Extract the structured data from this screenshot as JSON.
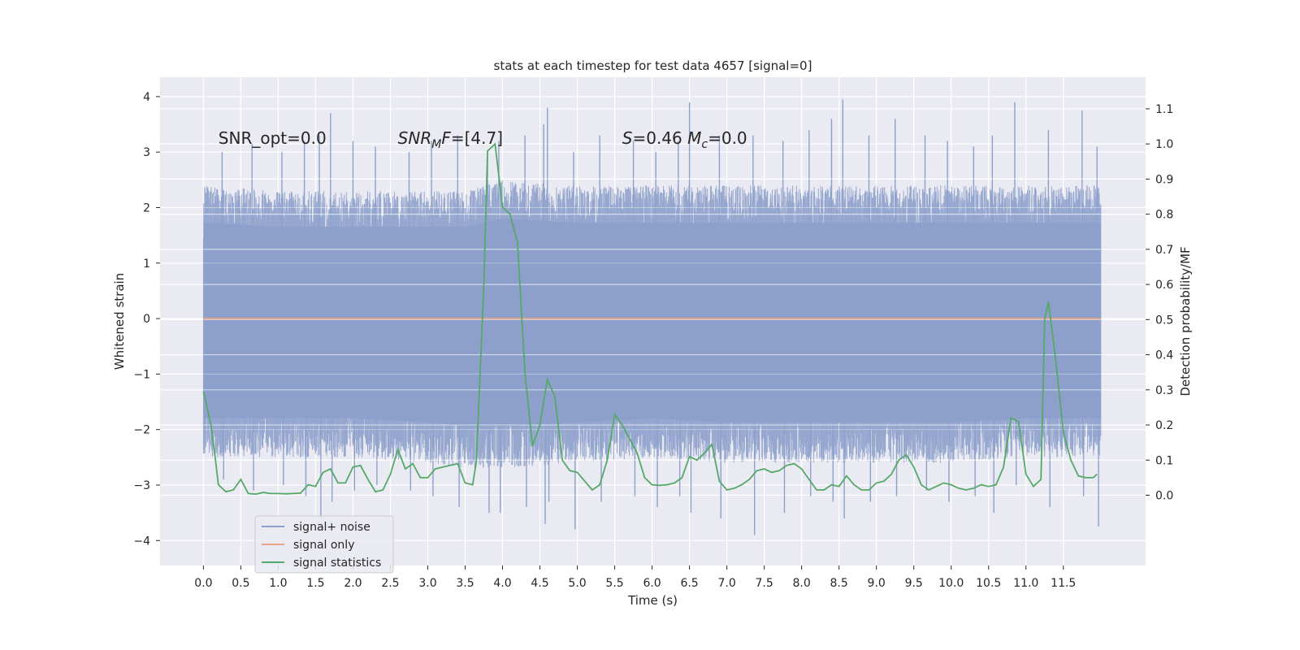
{
  "chart_data": {
    "type": "line",
    "title": "stats at each timestep for test data 4657 [signal=0]",
    "xlabel": "Time (s)",
    "ylabel": "Whitened strain",
    "y2label": "Detection probability/MF",
    "xlim": [
      -0.58,
      12.6
    ],
    "ylim": [
      -4.45,
      4.35
    ],
    "y2lim": [
      -0.2,
      1.19
    ],
    "grid": true,
    "legend_position": "lower-left",
    "x_ticks": [
      0.0,
      0.5,
      1.0,
      1.5,
      2.0,
      2.5,
      3.0,
      3.5,
      4.0,
      4.5,
      5.0,
      5.5,
      6.0,
      6.5,
      7.0,
      7.5,
      8.0,
      8.5,
      9.0,
      9.5,
      10.0,
      10.5,
      11.0,
      11.5
    ],
    "x_tick_labels": [
      "0.0",
      "0.5",
      "1.0",
      "1.5",
      "2.0",
      "2.5",
      "3.0",
      "3.5",
      "4.0",
      "4.5",
      "5.0",
      "5.5",
      "6.0",
      "6.5",
      "7.0",
      "7.5",
      "8.0",
      "8.5",
      "9.0",
      "9.5",
      "10.0",
      "10.5",
      "11.0",
      "11.5"
    ],
    "y_ticks": [
      -4,
      -3,
      -2,
      -1,
      0,
      1,
      2,
      3,
      4
    ],
    "y_tick_labels": [
      "−4",
      "−3",
      "−2",
      "−1",
      "0",
      "1",
      "2",
      "3",
      "4"
    ],
    "y2_ticks": [
      0.0,
      0.1,
      0.2,
      0.3,
      0.4,
      0.5,
      0.6,
      0.7,
      0.8,
      0.9,
      1.0,
      1.1
    ],
    "y2_tick_labels": [
      "0.0",
      "0.1",
      "0.2",
      "0.3",
      "0.4",
      "0.5",
      "0.6",
      "0.7",
      "0.8",
      "0.9",
      "1.0",
      "1.1"
    ],
    "annotations": [
      {
        "x": 0.2,
        "y": 3.15,
        "parts": [
          {
            "text": "SNR_opt=0.0"
          }
        ]
      },
      {
        "x": 2.6,
        "y": 3.15,
        "parts": [
          {
            "text": "SNR",
            "italic": true
          },
          {
            "text": "M",
            "italic": true,
            "sub": true
          },
          {
            "text": "F",
            "italic": true
          },
          {
            "text": "=[4.7]"
          }
        ]
      },
      {
        "x": 5.6,
        "y": 3.15,
        "parts": [
          {
            "text": "S",
            "italic": true
          },
          {
            "text": "=0.46   "
          },
          {
            "text": "M",
            "italic": true
          },
          {
            "text": "c",
            "italic": true,
            "sub": true
          },
          {
            "text": "=0.0"
          }
        ]
      }
    ],
    "series": [
      {
        "name": "signal+ noise",
        "color": "#8da0cb",
        "axis": "left",
        "style": "noise",
        "x_range": [
          0.0,
          12.0
        ],
        "band_envelope": {
          "x": [
            0.0,
            1.0,
            2.0,
            3.0,
            3.5,
            4.0,
            5.0,
            6.0,
            7.0,
            8.0,
            9.0,
            10.0,
            11.0,
            12.0
          ],
          "upper": [
            2.4,
            2.3,
            2.3,
            2.3,
            2.3,
            2.5,
            2.4,
            2.4,
            2.4,
            2.4,
            2.4,
            2.4,
            2.4,
            2.4
          ],
          "lower": [
            -2.5,
            -2.5,
            -2.5,
            -2.6,
            -2.7,
            -2.7,
            -2.6,
            -2.5,
            -2.6,
            -2.6,
            -2.6,
            -2.6,
            -2.5,
            -2.5
          ]
        },
        "peaks": {
          "x": [
            0.25,
            0.65,
            1.05,
            1.35,
            1.55,
            1.7,
            2.0,
            2.3,
            2.75,
            3.05,
            3.4,
            3.8,
            3.95,
            4.3,
            4.55,
            4.6,
            4.95,
            5.3,
            5.75,
            6.05,
            6.35,
            6.5,
            6.9,
            7.35,
            7.75,
            8.1,
            8.4,
            8.55,
            8.9,
            9.25,
            9.65,
            9.95,
            10.3,
            10.55,
            10.85,
            11.3,
            11.75,
            11.95
          ],
          "upper": [
            3.0,
            3.15,
            3.0,
            3.2,
            3.3,
            3.7,
            3.2,
            3.1,
            3.0,
            3.2,
            3.3,
            2.9,
            3.2,
            3.3,
            3.5,
            3.8,
            3.0,
            3.3,
            3.2,
            3.0,
            3.2,
            3.9,
            3.3,
            3.3,
            3.2,
            3.4,
            3.6,
            3.95,
            3.3,
            3.6,
            3.3,
            3.2,
            3.1,
            3.3,
            3.9,
            3.4,
            3.75,
            3.1
          ],
          "lower": [
            -2.9,
            -3.1,
            -3.0,
            -3.2,
            -3.6,
            -3.3,
            -3.1,
            -3.0,
            -3.1,
            -3.2,
            -3.4,
            -3.5,
            -3.5,
            -3.4,
            -3.7,
            -3.3,
            -3.8,
            -3.3,
            -3.2,
            -3.4,
            -3.2,
            -3.5,
            -3.6,
            -3.9,
            -3.5,
            -3.2,
            -3.3,
            -3.6,
            -3.3,
            -3.2,
            -3.1,
            -3.3,
            -3.2,
            -3.5,
            -3.0,
            -3.4,
            -3.2,
            -3.75
          ]
        }
      },
      {
        "name": "signal only",
        "color": "#e5a58a",
        "axis": "left",
        "style": "line",
        "x": [
          0.0,
          12.0
        ],
        "y": [
          0.0,
          0.0
        ]
      },
      {
        "name": "signal statistics",
        "color": "#55a868",
        "axis": "right",
        "style": "line",
        "x": [
          0.0,
          0.05,
          0.1,
          0.15,
          0.2,
          0.3,
          0.4,
          0.5,
          0.6,
          0.7,
          0.8,
          0.9,
          1.0,
          1.1,
          1.2,
          1.3,
          1.4,
          1.5,
          1.6,
          1.7,
          1.8,
          1.9,
          2.0,
          2.1,
          2.2,
          2.3,
          2.4,
          2.5,
          2.6,
          2.7,
          2.8,
          2.9,
          3.0,
          3.1,
          3.2,
          3.3,
          3.4,
          3.5,
          3.6,
          3.65,
          3.75,
          3.8,
          3.9,
          4.0,
          4.1,
          4.2,
          4.3,
          4.4,
          4.5,
          4.6,
          4.7,
          4.8,
          4.9,
          5.0,
          5.1,
          5.2,
          5.3,
          5.4,
          5.5,
          5.6,
          5.7,
          5.8,
          5.9,
          6.0,
          6.1,
          6.2,
          6.3,
          6.4,
          6.5,
          6.6,
          6.7,
          6.8,
          6.9,
          7.0,
          7.1,
          7.2,
          7.3,
          7.4,
          7.5,
          7.6,
          7.7,
          7.8,
          7.9,
          8.0,
          8.1,
          8.2,
          8.3,
          8.4,
          8.5,
          8.6,
          8.7,
          8.8,
          8.9,
          9.0,
          9.1,
          9.2,
          9.3,
          9.4,
          9.5,
          9.6,
          9.7,
          9.8,
          9.9,
          10.0,
          10.1,
          10.2,
          10.3,
          10.4,
          10.5,
          10.6,
          10.7,
          10.8,
          10.9,
          11.0,
          11.1,
          11.2,
          11.25,
          11.3,
          11.4,
          11.5,
          11.6,
          11.7,
          11.8,
          11.9,
          11.95
        ],
        "y": [
          0.295,
          0.25,
          0.2,
          0.12,
          0.03,
          0.01,
          0.015,
          0.045,
          0.005,
          0.003,
          0.008,
          0.005,
          0.005,
          0.004,
          0.005,
          0.006,
          0.03,
          0.025,
          0.065,
          0.075,
          0.035,
          0.035,
          0.08,
          0.085,
          0.045,
          0.01,
          0.015,
          0.06,
          0.13,
          0.075,
          0.09,
          0.05,
          0.05,
          0.075,
          0.08,
          0.085,
          0.09,
          0.035,
          0.03,
          0.095,
          0.6,
          0.98,
          1.0,
          0.82,
          0.8,
          0.72,
          0.35,
          0.14,
          0.2,
          0.33,
          0.28,
          0.1,
          0.07,
          0.065,
          0.04,
          0.015,
          0.03,
          0.1,
          0.23,
          0.2,
          0.16,
          0.12,
          0.05,
          0.03,
          0.028,
          0.03,
          0.035,
          0.05,
          0.11,
          0.1,
          0.12,
          0.145,
          0.04,
          0.015,
          0.02,
          0.03,
          0.045,
          0.07,
          0.075,
          0.065,
          0.07,
          0.085,
          0.09,
          0.075,
          0.045,
          0.015,
          0.015,
          0.03,
          0.025,
          0.055,
          0.03,
          0.015,
          0.015,
          0.035,
          0.04,
          0.06,
          0.1,
          0.115,
          0.08,
          0.03,
          0.015,
          0.025,
          0.035,
          0.03,
          0.02,
          0.015,
          0.02,
          0.03,
          0.025,
          0.03,
          0.08,
          0.22,
          0.21,
          0.06,
          0.025,
          0.045,
          0.5,
          0.55,
          0.38,
          0.18,
          0.1,
          0.055,
          0.05,
          0.05,
          0.06
        ]
      }
    ]
  }
}
